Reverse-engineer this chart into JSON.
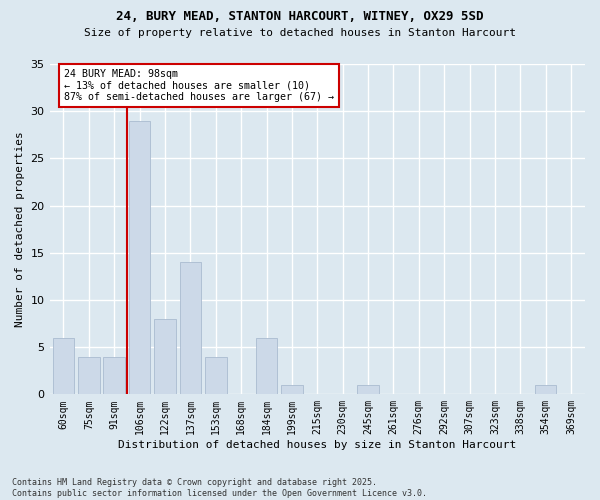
{
  "title1": "24, BURY MEAD, STANTON HARCOURT, WITNEY, OX29 5SD",
  "title2": "Size of property relative to detached houses in Stanton Harcourt",
  "xlabel": "Distribution of detached houses by size in Stanton Harcourt",
  "ylabel": "Number of detached properties",
  "categories": [
    "60sqm",
    "75sqm",
    "91sqm",
    "106sqm",
    "122sqm",
    "137sqm",
    "153sqm",
    "168sqm",
    "184sqm",
    "199sqm",
    "215sqm",
    "230sqm",
    "245sqm",
    "261sqm",
    "276sqm",
    "292sqm",
    "307sqm",
    "323sqm",
    "338sqm",
    "354sqm",
    "369sqm"
  ],
  "values": [
    6,
    4,
    4,
    29,
    8,
    14,
    4,
    0,
    6,
    1,
    0,
    0,
    1,
    0,
    0,
    0,
    0,
    0,
    0,
    1,
    0
  ],
  "bar_color": "#ccd9e8",
  "bar_edge_color": "#aabbd0",
  "vline_index": 3,
  "vline_color": "#cc0000",
  "annotation_text": "24 BURY MEAD: 98sqm\n← 13% of detached houses are smaller (10)\n87% of semi-detached houses are larger (67) →",
  "annotation_box_color": "#ffffff",
  "annotation_box_edge": "#cc0000",
  "bg_color": "#dce8f0",
  "grid_color": "#ffffff",
  "footnote": "Contains HM Land Registry data © Crown copyright and database right 2025.\nContains public sector information licensed under the Open Government Licence v3.0.",
  "ylim": [
    0,
    35
  ],
  "yticks": [
    0,
    5,
    10,
    15,
    20,
    25,
    30,
    35
  ]
}
